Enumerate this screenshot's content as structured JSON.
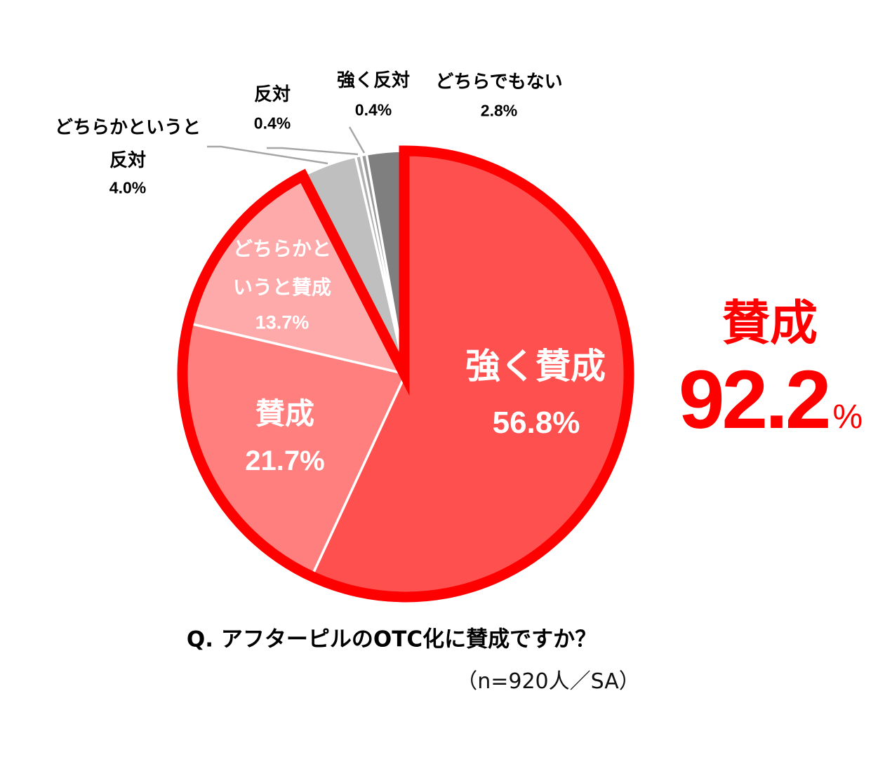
{
  "chart_data": {
    "type": "pie",
    "title": "Q. アフターピルのOTC化に賛成ですか？",
    "subtitle": "（n=920人／SA）",
    "direction": "clockwise",
    "start": "12 o'clock",
    "categories": [
      "強く賛成",
      "賛成",
      "どちらかというと賛成",
      "どちらかというと反対",
      "反対",
      "強く反対",
      "どちらでもない"
    ],
    "values": [
      56.8,
      21.7,
      13.7,
      4.0,
      0.4,
      0.4,
      2.8
    ],
    "unit": "%",
    "slices": [
      {
        "label": "強く賛成",
        "value": 56.8,
        "color": "#ff5050"
      },
      {
        "label": "賛成",
        "value": 21.7,
        "color": "#ff7f7f"
      },
      {
        "label": "どちらかというと賛成",
        "value": 13.7,
        "color": "#ffaaaa"
      },
      {
        "label": "どちらかというと反対",
        "value": 4.0,
        "color": "#bfbfbf"
      },
      {
        "label": "反対",
        "value": 0.4,
        "color": "#b0b0b0"
      },
      {
        "label": "強く反対",
        "value": 0.4,
        "color": "#9a9a9a"
      },
      {
        "label": "どちらでもない",
        "value": 2.8,
        "color": "#7f7f7f"
      }
    ],
    "highlight": {
      "label": "賛成",
      "value": 92.2,
      "unit": "%",
      "slice_indices": [
        0,
        1,
        2
      ],
      "color": "#ff0000"
    },
    "legend": "none (data labels)"
  },
  "labels": {
    "strongly_agree": {
      "line1": "強く賛成",
      "pct": "56.8%"
    },
    "agree": {
      "line1": "賛成",
      "pct": "21.7%"
    },
    "somewhat_agree": {
      "line1": "どちらかと",
      "line2": "いうと賛成",
      "pct": "13.7%"
    },
    "somewhat_disagree": {
      "line1": "どちらかというと",
      "line2": "反対",
      "pct": "4.0%"
    },
    "disagree": {
      "line1": "反対",
      "pct": "0.4%"
    },
    "strongly_disagree": {
      "line1": "強く反対",
      "pct": "0.4%"
    },
    "neutral": {
      "line1": "どちらでもない",
      "pct": "2.8%"
    }
  },
  "callout": {
    "label": "賛成",
    "number": "92.2",
    "unit": "%"
  },
  "question": "Q. アフターピルのOTC化に賛成ですか？",
  "sample": "（n=920人／SA）",
  "colors": {
    "accent_red": "#ff0000",
    "leader_line": "#a6a6a6",
    "slice_border": "#ffffff"
  }
}
